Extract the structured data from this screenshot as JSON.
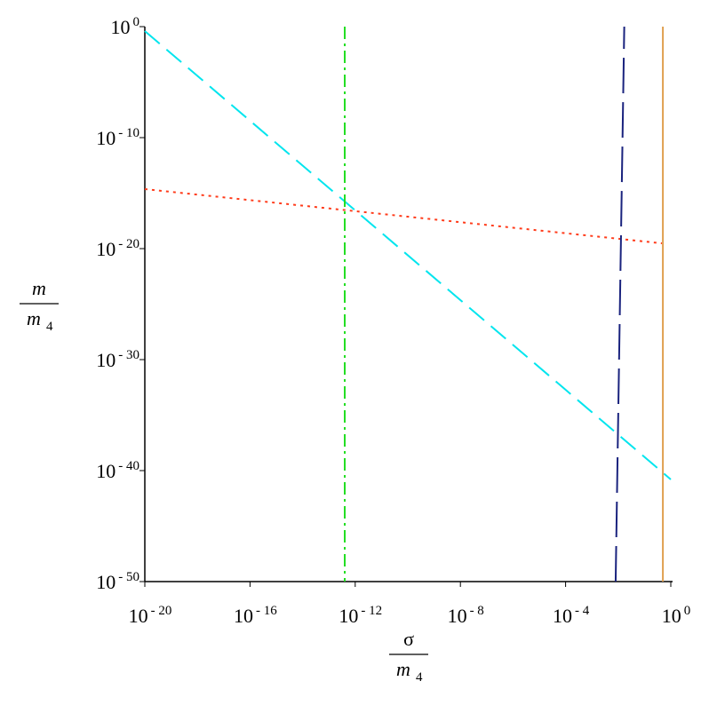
{
  "chart_data": {
    "type": "line",
    "xlog": true,
    "ylog": true,
    "xlim": [
      1e-20,
      1
    ],
    "ylim": [
      1e-50,
      1
    ],
    "xticks": [
      {
        "value": 1e-20,
        "label": "10",
        "exponent": "- 20"
      },
      {
        "value": 1e-16,
        "label": "10",
        "exponent": "- 16"
      },
      {
        "value": 1e-12,
        "label": "10",
        "exponent": "- 12"
      },
      {
        "value": 1e-08,
        "label": "10",
        "exponent": "- 8"
      },
      {
        "value": 0.0001,
        "label": "10",
        "exponent": "- 4"
      },
      {
        "value": 1,
        "label": "10",
        "exponent": "0"
      }
    ],
    "yticks": [
      {
        "value": 1e-50,
        "label": "10",
        "exponent": "- 50"
      },
      {
        "value": 1e-40,
        "label": "10",
        "exponent": "- 40"
      },
      {
        "value": 1e-30,
        "label": "10",
        "exponent": "- 30"
      },
      {
        "value": 1e-20,
        "label": "10",
        "exponent": "- 20"
      },
      {
        "value": 1e-10,
        "label": "10",
        "exponent": "- 10"
      },
      {
        "value": 1,
        "label": "10",
        "exponent": "0"
      }
    ],
    "xlabel": {
      "numerator": "σ",
      "denominator": "m",
      "denominator_subscript": "4"
    },
    "ylabel": {
      "numerator": "m",
      "denominator": "m",
      "denominator_subscript": "4"
    },
    "series": [
      {
        "color": "#00e5ee",
        "dash": "dashed",
        "x": [
          1e-20,
          1
        ],
        "values": [
          0.4,
          1.6e-41
        ]
      },
      {
        "color": "#ff3b1a",
        "dash": "dotted",
        "x": [
          1e-20,
          0.46
        ],
        "values": [
          2.3e-15,
          3e-20
        ]
      },
      {
        "color": "#22dd22",
        "dash": "dashdot",
        "x": [
          4e-13,
          4e-13
        ],
        "values": [
          1,
          1e-50
        ]
      },
      {
        "color": "#1a237e",
        "dash": "longdash",
        "x": [
          0.008,
          0.017
        ],
        "values": [
          1e-50,
          1
        ]
      },
      {
        "color": "#e0a050",
        "dash": "solid",
        "x": [
          0.5,
          0.5
        ],
        "values": [
          1,
          1e-50
        ]
      }
    ]
  }
}
